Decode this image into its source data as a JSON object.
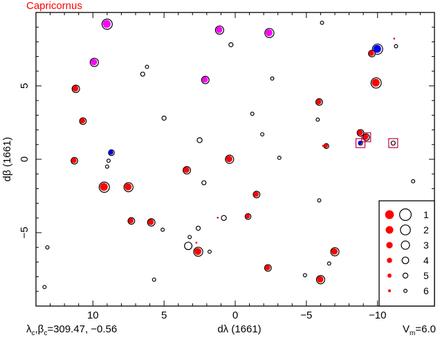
{
  "chart_data": {
    "type": "scatter",
    "title": "Capricornus",
    "xlabel": "dλ (1661)",
    "ylabel": "dβ (1661)",
    "xlim": [
      14,
      -14
    ],
    "ylim": [
      -10,
      10
    ],
    "grid": false,
    "legend_position": "bottom-right",
    "x_ticks": [
      {
        "value": 10,
        "label": "10"
      },
      {
        "value": 5,
        "label": "5"
      },
      {
        "value": 0,
        "label": "0"
      },
      {
        "value": -5,
        "label": "−5"
      },
      {
        "value": -10,
        "label": "−10"
      }
    ],
    "y_ticks": [
      {
        "value": 5,
        "label": "5"
      },
      {
        "value": 0,
        "label": "0"
      },
      {
        "value": -5,
        "label": "−5"
      }
    ],
    "footer_left": "λc,βc=309.47, −0.56",
    "footer_left_parts": {
      "lam": "λ",
      "sub1": "c",
      "beta": "β",
      "sub2": "c",
      "value": "=309.47, −0.56"
    },
    "footer_right": "Vm=6.0",
    "footer_right_parts": {
      "v": "V",
      "sub": "m",
      "value": "=6.0"
    },
    "legend": [
      {
        "mag": 1,
        "label": "1"
      },
      {
        "mag": 2,
        "label": "2"
      },
      {
        "mag": 3,
        "label": "3"
      },
      {
        "mag": 4,
        "label": "4"
      },
      {
        "mag": 5,
        "label": "5"
      },
      {
        "mag": 6,
        "label": "6"
      }
    ],
    "colors": {
      "red": "#ff0000",
      "magenta": "#ff00ff",
      "blue": "#0000ff",
      "box": "#cc0044",
      "title": "#ff0000"
    },
    "stars": [
      {
        "x": 9.0,
        "y": 9.2,
        "mag": 1.8,
        "fill": "magenta"
      },
      {
        "x": 1.1,
        "y": 8.8,
        "mag": 3.0,
        "fill": "magenta"
      },
      {
        "x": -2.4,
        "y": 8.6,
        "mag": 2.5,
        "fill": "magenta"
      },
      {
        "x": -6.1,
        "y": 9.3,
        "mag": 6.0
      },
      {
        "x": -11.2,
        "y": 8.2,
        "mag": 5.5,
        "fill": "red",
        "bare": true
      },
      {
        "x": 0.3,
        "y": 7.8,
        "mag": 5.5
      },
      {
        "x": -10.0,
        "y": 7.5,
        "mag": 1.8,
        "fill": "blue"
      },
      {
        "x": -9.6,
        "y": 7.2,
        "mag": 4.0,
        "fill": "red"
      },
      {
        "x": -11.3,
        "y": 7.7,
        "mag": 6.0
      },
      {
        "x": 9.9,
        "y": 6.6,
        "mag": 3.0,
        "fill": "magenta"
      },
      {
        "x": 6.2,
        "y": 6.3,
        "mag": 6.0
      },
      {
        "x": 6.5,
        "y": 5.8,
        "mag": 5.5
      },
      {
        "x": 2.1,
        "y": 5.4,
        "mag": 3.5,
        "fill": "magenta"
      },
      {
        "x": -2.6,
        "y": 5.5,
        "mag": 6.0
      },
      {
        "x": -9.9,
        "y": 5.2,
        "mag": 1.8,
        "fill": "red"
      },
      {
        "x": 11.2,
        "y": 4.8,
        "mag": 3.5,
        "fill": "red"
      },
      {
        "x": -5.9,
        "y": 3.9,
        "mag": 4.0,
        "fill": "red"
      },
      {
        "x": -1.2,
        "y": 3.1,
        "mag": 6.0
      },
      {
        "x": 5.0,
        "y": 2.8,
        "mag": 5.5
      },
      {
        "x": -5.8,
        "y": 2.7,
        "mag": 6.0
      },
      {
        "x": 10.7,
        "y": 2.6,
        "mag": 4.0,
        "fill": "red"
      },
      {
        "x": -8.8,
        "y": 1.8,
        "mag": 4.0,
        "fill": "red"
      },
      {
        "x": -1.9,
        "y": 1.7,
        "mag": 6.0
      },
      {
        "x": -9.2,
        "y": 1.5,
        "mag": 4.0,
        "fill": "red",
        "box": true
      },
      {
        "x": 2.5,
        "y": 1.3,
        "mag": 5.0
      },
      {
        "x": -8.8,
        "y": 1.1,
        "mag": 5.5,
        "fill": "blue",
        "box": true
      },
      {
        "x": -11.1,
        "y": 1.1,
        "mag": 5.5,
        "box": true
      },
      {
        "x": -6.4,
        "y": 0.9,
        "mag": 5.0,
        "fill": "red"
      },
      {
        "x": -6.2,
        "y": 0.9,
        "mag": 5.5,
        "fill": "red",
        "bare": true
      },
      {
        "x": 8.7,
        "y": 0.45,
        "mag": 4.5,
        "fill": "blue"
      },
      {
        "x": 11.3,
        "y": -0.1,
        "mag": 4.0,
        "fill": "red"
      },
      {
        "x": 0.4,
        "y": 0.0,
        "mag": 3.0,
        "fill": "red"
      },
      {
        "x": -3.1,
        "y": 0.1,
        "mag": 6.0
      },
      {
        "x": 8.9,
        "y": -0.1,
        "mag": 6.0
      },
      {
        "x": 9.0,
        "y": -0.5,
        "mag": 6.0
      },
      {
        "x": 3.4,
        "y": -0.75,
        "mag": 3.5,
        "fill": "red"
      },
      {
        "x": -12.5,
        "y": -1.5,
        "mag": 6.0
      },
      {
        "x": 2.2,
        "y": -1.6,
        "mag": 5.5
      },
      {
        "x": 9.2,
        "y": -1.9,
        "mag": 1.8,
        "fill": "red"
      },
      {
        "x": 7.5,
        "y": -1.9,
        "mag": 2.5,
        "fill": "red"
      },
      {
        "x": -1.5,
        "y": -2.4,
        "mag": 4.0,
        "fill": "red"
      },
      {
        "x": -5.9,
        "y": -2.8,
        "mag": 6.0
      },
      {
        "x": 7.3,
        "y": -4.2,
        "mag": 4.0,
        "fill": "red"
      },
      {
        "x": 5.9,
        "y": -4.3,
        "mag": 3.5,
        "fill": "red"
      },
      {
        "x": 1.2,
        "y": -4.0,
        "mag": 5.5,
        "fill": "red",
        "bare": true
      },
      {
        "x": 0.8,
        "y": -4.0,
        "mag": 5.0
      },
      {
        "x": -0.9,
        "y": -3.9,
        "mag": 4.5,
        "fill": "red"
      },
      {
        "x": 5.1,
        "y": -4.8,
        "mag": 6.0
      },
      {
        "x": 2.6,
        "y": -4.7,
        "mag": 5.5
      },
      {
        "x": 3.2,
        "y": -5.3,
        "mag": 6.0
      },
      {
        "x": 2.7,
        "y": -5.7,
        "mag": 5.5,
        "fill": "red",
        "bare": true
      },
      {
        "x": 3.3,
        "y": -5.9,
        "mag": 3.5
      },
      {
        "x": 2.6,
        "y": -6.3,
        "mag": 2.5,
        "fill": "red"
      },
      {
        "x": 1.8,
        "y": -6.3,
        "mag": 6.0
      },
      {
        "x": -7.0,
        "y": -6.3,
        "mag": 3.0,
        "fill": "red"
      },
      {
        "x": -6.6,
        "y": -7.1,
        "mag": 6.0
      },
      {
        "x": 13.2,
        "y": -6.0,
        "mag": 6.0
      },
      {
        "x": -2.3,
        "y": -7.4,
        "mag": 4.0,
        "fill": "red"
      },
      {
        "x": 5.7,
        "y": -8.2,
        "mag": 6.0
      },
      {
        "x": -4.9,
        "y": -7.9,
        "mag": 6.0
      },
      {
        "x": -6.0,
        "y": -8.2,
        "mag": 3.0,
        "fill": "red"
      },
      {
        "x": 13.4,
        "y": -8.7,
        "mag": 6.0
      }
    ]
  }
}
